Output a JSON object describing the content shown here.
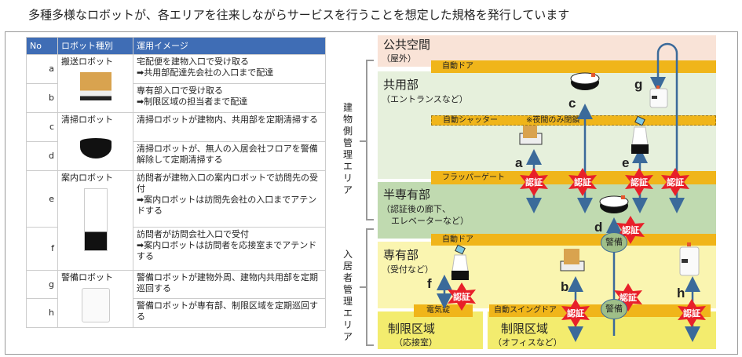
{
  "title": "多種多様なロボットが、各エリアを往来しながらサービスを行うことを想定した規格を発行しています",
  "table": {
    "headers": [
      "No",
      "ロボット種別",
      "運用イメージ"
    ],
    "rows": [
      {
        "no": "a",
        "type": "搬送ロボット",
        "desc": [
          "宅配便を建物入口で受け取る",
          "➡共用部配達先会社の入口まで配達"
        ]
      },
      {
        "no": "b",
        "type": "",
        "desc": [
          "専有部入口で受け取る",
          "➡制限区域の担当者まで配達"
        ]
      },
      {
        "no": "c",
        "type": "清掃ロボット",
        "desc": [
          "清掃ロボットが建物内、共用部を定期清掃する"
        ]
      },
      {
        "no": "d",
        "type": "",
        "desc": [
          "清掃ロボットが、無人の入居会社フロアを警備解除して定期清掃する"
        ]
      },
      {
        "no": "e",
        "type": "案内ロボット",
        "desc": [
          "訪問者が建物入口の案内ロボットで訪問先の受付",
          "➡案内ロボットは訪問先会社の入口までアテンドする"
        ]
      },
      {
        "no": "f",
        "type": "",
        "desc": [
          "訪問者が訪問会社入口で受付",
          "➡案内ロボットは訪問者を応接室までアテンドする"
        ]
      },
      {
        "no": "g",
        "type": "警備ロボット",
        "desc": [
          "警備ロボットが建物外周、建物内共用部を定期巡回する"
        ]
      },
      {
        "no": "h",
        "type": "",
        "desc": [
          "警備ロボットが専有部、制限区域を定期巡回する"
        ]
      }
    ]
  },
  "diagram": {
    "zones": {
      "public": {
        "title": "公共空間",
        "sub": "（屋外）"
      },
      "common": {
        "title": "共用部",
        "sub": "（エントランスなど）"
      },
      "semi": {
        "title": "半専有部",
        "sub": "（認証後の廊下、",
        "sub2": "エレベーターなど）"
      },
      "private": {
        "title": "専有部",
        "sub": "（受付など）"
      },
      "restricted1": {
        "title": "制限区域",
        "sub": "（応接室）"
      },
      "restricted2": {
        "title": "制限区域",
        "sub": "（オフィスなど）"
      }
    },
    "bars": {
      "door1": "自動ドア",
      "shutter": "自動シャッター",
      "shutter_note": "※夜間のみ閉鎖",
      "gate": "フラッパーゲート",
      "door2": "自動ドア",
      "lock": "電気錠",
      "swing": "自動スイングドア"
    },
    "brackets": {
      "building": "建物側管理エリア",
      "tenant": "入居者管理エリア"
    },
    "auth": "認証",
    "security": "警備",
    "labels": {
      "a": "a",
      "b": "b",
      "c": "c",
      "d": "d",
      "e": "e",
      "f": "f",
      "g": "g",
      "h": "h"
    },
    "colors": {
      "public": "#f9e3d7",
      "common": "#e6f0dc",
      "semi": "#c0dab0",
      "private": "#faf5b0",
      "restricted": "#f3ec6e",
      "bar": "#f0b51a",
      "arrow": "#3b6a9a",
      "auth": "#e8202a",
      "header": "#3f6db5"
    }
  }
}
